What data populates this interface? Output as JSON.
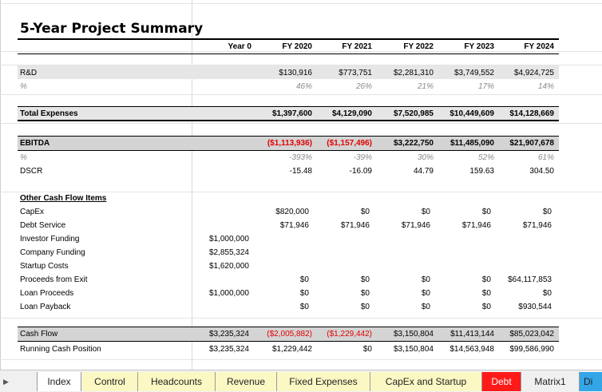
{
  "title": "5-Year Project Summary",
  "headers": [
    "Year 0",
    "FY 2020",
    "FY 2021",
    "FY 2022",
    "FY 2023",
    "FY 2024"
  ],
  "rnd": {
    "label": "R&D",
    "values": [
      "",
      "$130,916",
      "$773,751",
      "$2,281,310",
      "$3,749,552",
      "$4,924,725"
    ],
    "pct_label": "%",
    "pct": [
      "",
      "46%",
      "26%",
      "21%",
      "17%",
      "14%"
    ]
  },
  "total_expenses": {
    "label": "Total Expenses",
    "values": [
      "",
      "$1,397,600",
      "$4,129,090",
      "$7,520,985",
      "$10,449,609",
      "$14,128,669"
    ]
  },
  "ebitda": {
    "label": "EBITDA",
    "values": [
      "",
      "($1,113,936)",
      "($1,157,496)",
      "$3,222,750",
      "$11,485,090",
      "$21,907,678"
    ],
    "pct_label": "%",
    "pct": [
      "",
      "-393%",
      "-39%",
      "30%",
      "52%",
      "61%"
    ]
  },
  "dscr": {
    "label": "DSCR",
    "values": [
      "",
      "-15.48",
      "-16.09",
      "44.79",
      "159.63",
      "304.50"
    ]
  },
  "other": {
    "heading": "Other Cash Flow Items",
    "rows": [
      {
        "label": "CapEx",
        "values": [
          "",
          "$820,000",
          "$0",
          "$0",
          "$0",
          "$0"
        ]
      },
      {
        "label": "Debt Service",
        "values": [
          "",
          "$71,946",
          "$71,946",
          "$71,946",
          "$71,946",
          "$71,946"
        ]
      },
      {
        "label": "Investor Funding",
        "values": [
          "$1,000,000",
          "",
          "",
          "",
          "",
          ""
        ]
      },
      {
        "label": "Company Funding",
        "values": [
          "$2,855,324",
          "",
          "",
          "",
          "",
          ""
        ]
      },
      {
        "label": "Startup Costs",
        "values": [
          "$1,620,000",
          "",
          "",
          "",
          "",
          ""
        ]
      },
      {
        "label": "Proceeds from Exit",
        "values": [
          "",
          "$0",
          "$0",
          "$0",
          "$0",
          "$64,117,853"
        ]
      },
      {
        "label": "Loan Proceeds",
        "values": [
          "$1,000,000",
          "$0",
          "$0",
          "$0",
          "$0",
          "$0"
        ]
      },
      {
        "label": "Loan Payback",
        "values": [
          "",
          "$0",
          "$0",
          "$0",
          "$0",
          "$930,544"
        ]
      }
    ]
  },
  "cash_flow": {
    "label": "Cash Flow",
    "values": [
      "$3,235,324",
      "($2,005,882)",
      "($1,229,442)",
      "$3,150,804",
      "$11,413,144",
      "$85,023,042"
    ]
  },
  "running_cash": {
    "label": "Running Cash Position",
    "values": [
      "$3,235,324",
      "$1,229,442",
      "$0",
      "$3,150,804",
      "$14,563,948",
      "$99,586,990"
    ]
  },
  "tabs": [
    "Index",
    "Control",
    "Headcounts",
    "Revenue",
    "Fixed Expenses",
    "CapEx and Startup",
    "Debt",
    "Matrix1",
    "Di"
  ],
  "colors": {
    "negative": "#e00000",
    "tab_yellow": "#fcf8c4",
    "tab_red": "#ff1a1a",
    "tab_blue": "#33a6e8"
  }
}
